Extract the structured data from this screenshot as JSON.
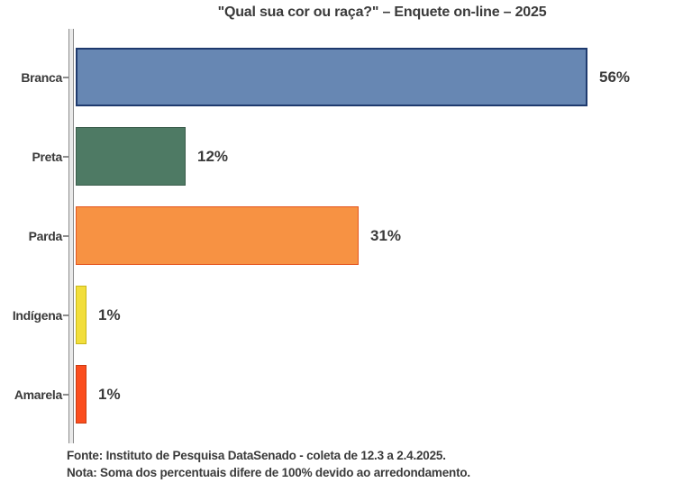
{
  "header": {
    "title": "\"Qual sua cor ou raça?\" – Enquete on-line – 2025"
  },
  "footer": {
    "fonte": "Fonte: Instituto de Pesquisa DataSenado - coleta de 12.3 a 2.4.2025.",
    "nota": "Nota: Soma dos percentuais difere de 100% devido ao arredondamento."
  },
  "chart_data": {
    "type": "bar",
    "orientation": "horizontal",
    "title": "\"Qual sua cor ou raça?\" – Enquete on-line – 2025",
    "categories": [
      "Branca",
      "Preta",
      "Parda",
      "Indígena",
      "Amarela"
    ],
    "values": [
      56,
      12,
      31,
      1,
      1
    ],
    "value_labels": [
      "56%",
      "12%",
      "31%",
      "1%",
      "1%"
    ],
    "bar_colors": [
      "#6787B3",
      "#4E7A64",
      "#F79243",
      "#F2DE3B",
      "#FB4D1E"
    ],
    "bar_border_colors": [
      "#1E3A6E",
      "#3A5C4B",
      "#E4551E",
      "#C9B718",
      "#C93A10"
    ],
    "bar_border_widths": [
      2,
      1,
      1,
      1,
      1
    ],
    "xlim": [
      0,
      60
    ],
    "grid": false,
    "legend": "none",
    "text_color": "#3A3A3A",
    "axis_color": "#8C8C8C",
    "xlabel": "",
    "ylabel": ""
  }
}
